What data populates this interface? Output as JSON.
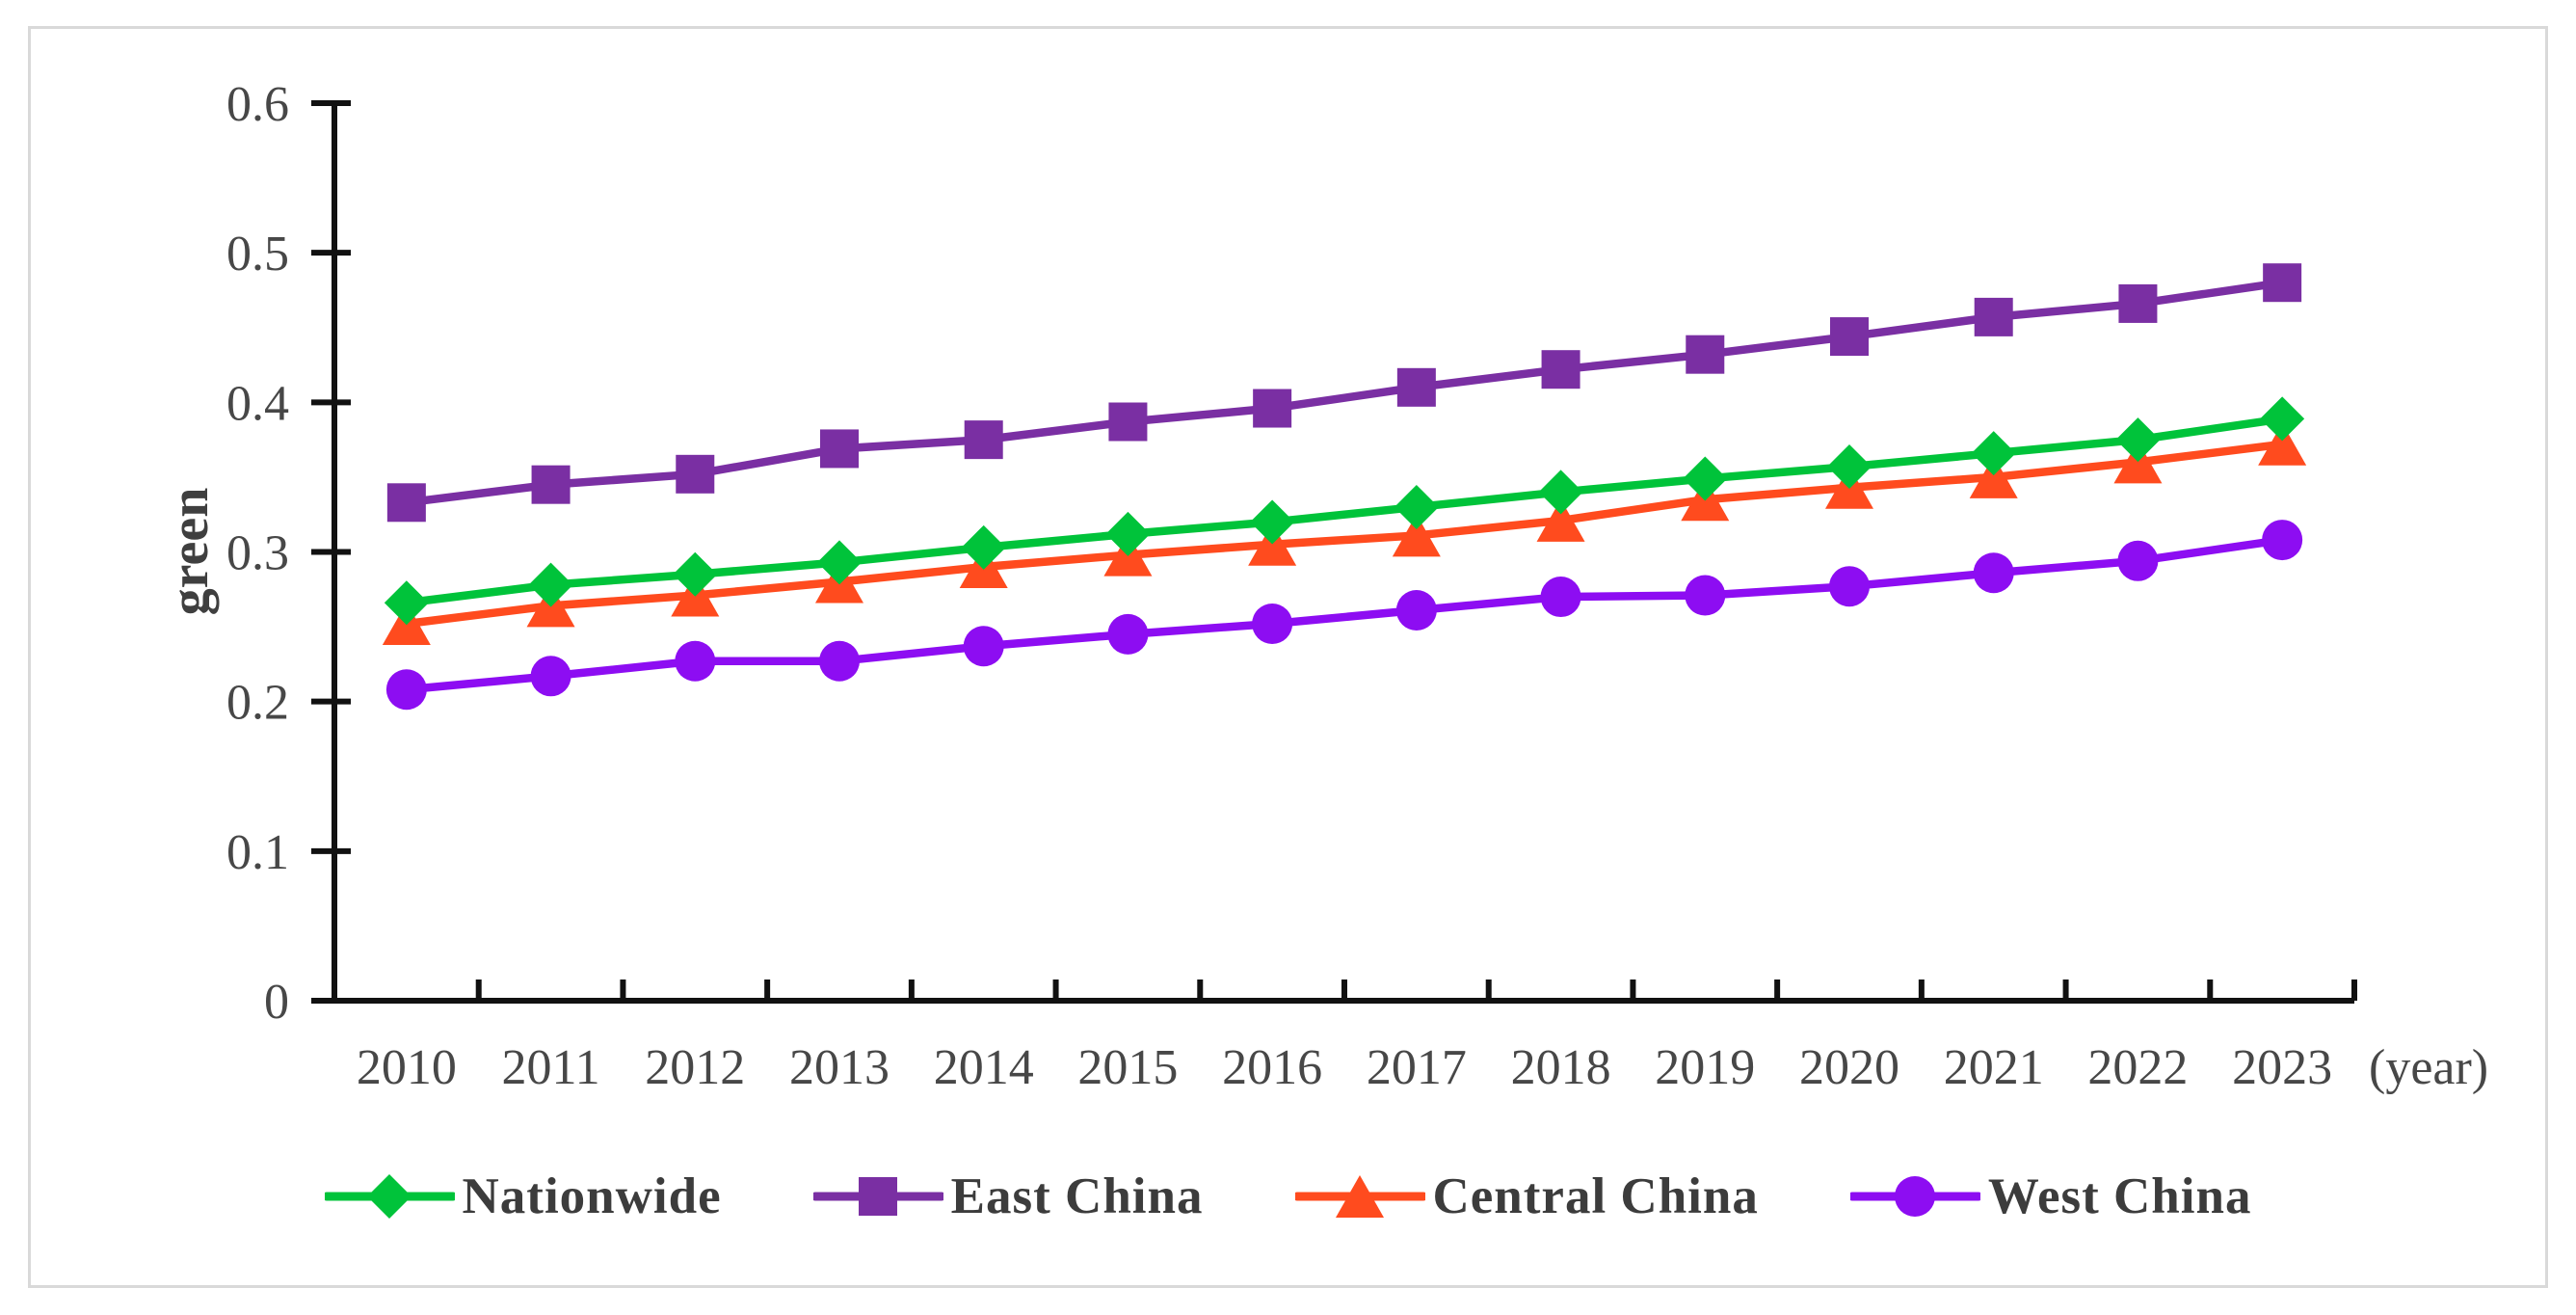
{
  "frame": {
    "background": "#ffffff",
    "border_color": "#d9d9d9"
  },
  "chart_data": {
    "type": "line",
    "title": "",
    "ylabel": "green",
    "xlabel_suffix": "(year)",
    "ylim": [
      0,
      0.6
    ],
    "ytick_step": 0.1,
    "ytick_labels": [
      "0",
      "0.1",
      "0.2",
      "0.3",
      "0.4",
      "0.5",
      "0.6"
    ],
    "categories": [
      "2010",
      "2011",
      "2012",
      "2013",
      "2014",
      "2015",
      "2016",
      "2017",
      "2018",
      "2019",
      "2020",
      "2021",
      "2022",
      "2023"
    ],
    "series": [
      {
        "name": "Nationwide",
        "marker": "diamond",
        "color": "#00c33a",
        "values": [
          0.266,
          0.278,
          0.285,
          0.293,
          0.303,
          0.312,
          0.32,
          0.33,
          0.34,
          0.349,
          0.357,
          0.366,
          0.375,
          0.389
        ]
      },
      {
        "name": "East China",
        "marker": "square",
        "color": "#7a2fa3",
        "values": [
          0.333,
          0.345,
          0.352,
          0.369,
          0.375,
          0.387,
          0.396,
          0.41,
          0.422,
          0.432,
          0.444,
          0.457,
          0.466,
          0.48
        ]
      },
      {
        "name": "Central China",
        "marker": "triangle",
        "color": "#ff4b1e",
        "values": [
          0.252,
          0.264,
          0.271,
          0.28,
          0.29,
          0.298,
          0.305,
          0.311,
          0.321,
          0.335,
          0.343,
          0.35,
          0.36,
          0.372
        ]
      },
      {
        "name": "West China",
        "marker": "circle",
        "color": "#8d0df2",
        "values": [
          0.208,
          0.217,
          0.227,
          0.227,
          0.237,
          0.245,
          0.252,
          0.261,
          0.27,
          0.271,
          0.277,
          0.286,
          0.294,
          0.308
        ]
      }
    ],
    "legend_position": "bottom",
    "grid": false,
    "axis_color": "#111111",
    "tick_text_color": "#474747"
  }
}
